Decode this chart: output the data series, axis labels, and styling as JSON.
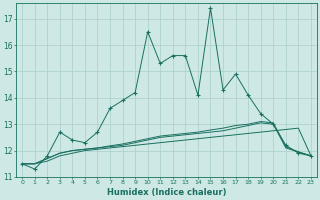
{
  "xlabel": "Humidex (Indice chaleur)",
  "bg_color": "#cde8e5",
  "grid_color": "#aacfcc",
  "line_color": "#1a7060",
  "xlim": [
    -0.5,
    23.5
  ],
  "ylim": [
    11,
    17.6
  ],
  "yticks": [
    11,
    12,
    13,
    14,
    15,
    16,
    17
  ],
  "xticks": [
    0,
    1,
    2,
    3,
    4,
    5,
    6,
    7,
    8,
    9,
    10,
    11,
    12,
    13,
    14,
    15,
    16,
    17,
    18,
    19,
    20,
    21,
    22,
    23
  ],
  "main_line_x": [
    0,
    1,
    2,
    3,
    4,
    5,
    6,
    7,
    8,
    9,
    10,
    11,
    12,
    13,
    14,
    15,
    16,
    17,
    18,
    19,
    20,
    21,
    22,
    23
  ],
  "main_line_y": [
    11.5,
    11.3,
    11.8,
    12.7,
    12.4,
    12.3,
    12.7,
    13.6,
    13.9,
    14.2,
    16.5,
    15.3,
    15.6,
    15.6,
    14.1,
    17.4,
    14.3,
    14.9,
    14.1,
    13.4,
    13.0,
    12.2,
    11.9,
    11.8
  ],
  "flat_lines": [
    [
      11.5,
      11.5,
      11.6,
      11.8,
      11.9,
      12.0,
      12.05,
      12.1,
      12.15,
      12.2,
      12.25,
      12.3,
      12.35,
      12.4,
      12.45,
      12.5,
      12.55,
      12.6,
      12.65,
      12.7,
      12.75,
      12.8,
      12.85,
      11.8
    ],
    [
      11.5,
      11.5,
      11.7,
      11.9,
      12.0,
      12.05,
      12.1,
      12.15,
      12.2,
      12.3,
      12.4,
      12.5,
      12.55,
      12.6,
      12.65,
      12.7,
      12.75,
      12.85,
      12.95,
      13.05,
      13.0,
      12.1,
      11.95,
      11.8
    ],
    [
      11.5,
      11.5,
      11.7,
      11.9,
      12.0,
      12.05,
      12.1,
      12.18,
      12.25,
      12.35,
      12.45,
      12.55,
      12.6,
      12.65,
      12.7,
      12.78,
      12.85,
      12.95,
      13.0,
      13.1,
      13.05,
      12.15,
      11.95,
      11.8
    ]
  ]
}
